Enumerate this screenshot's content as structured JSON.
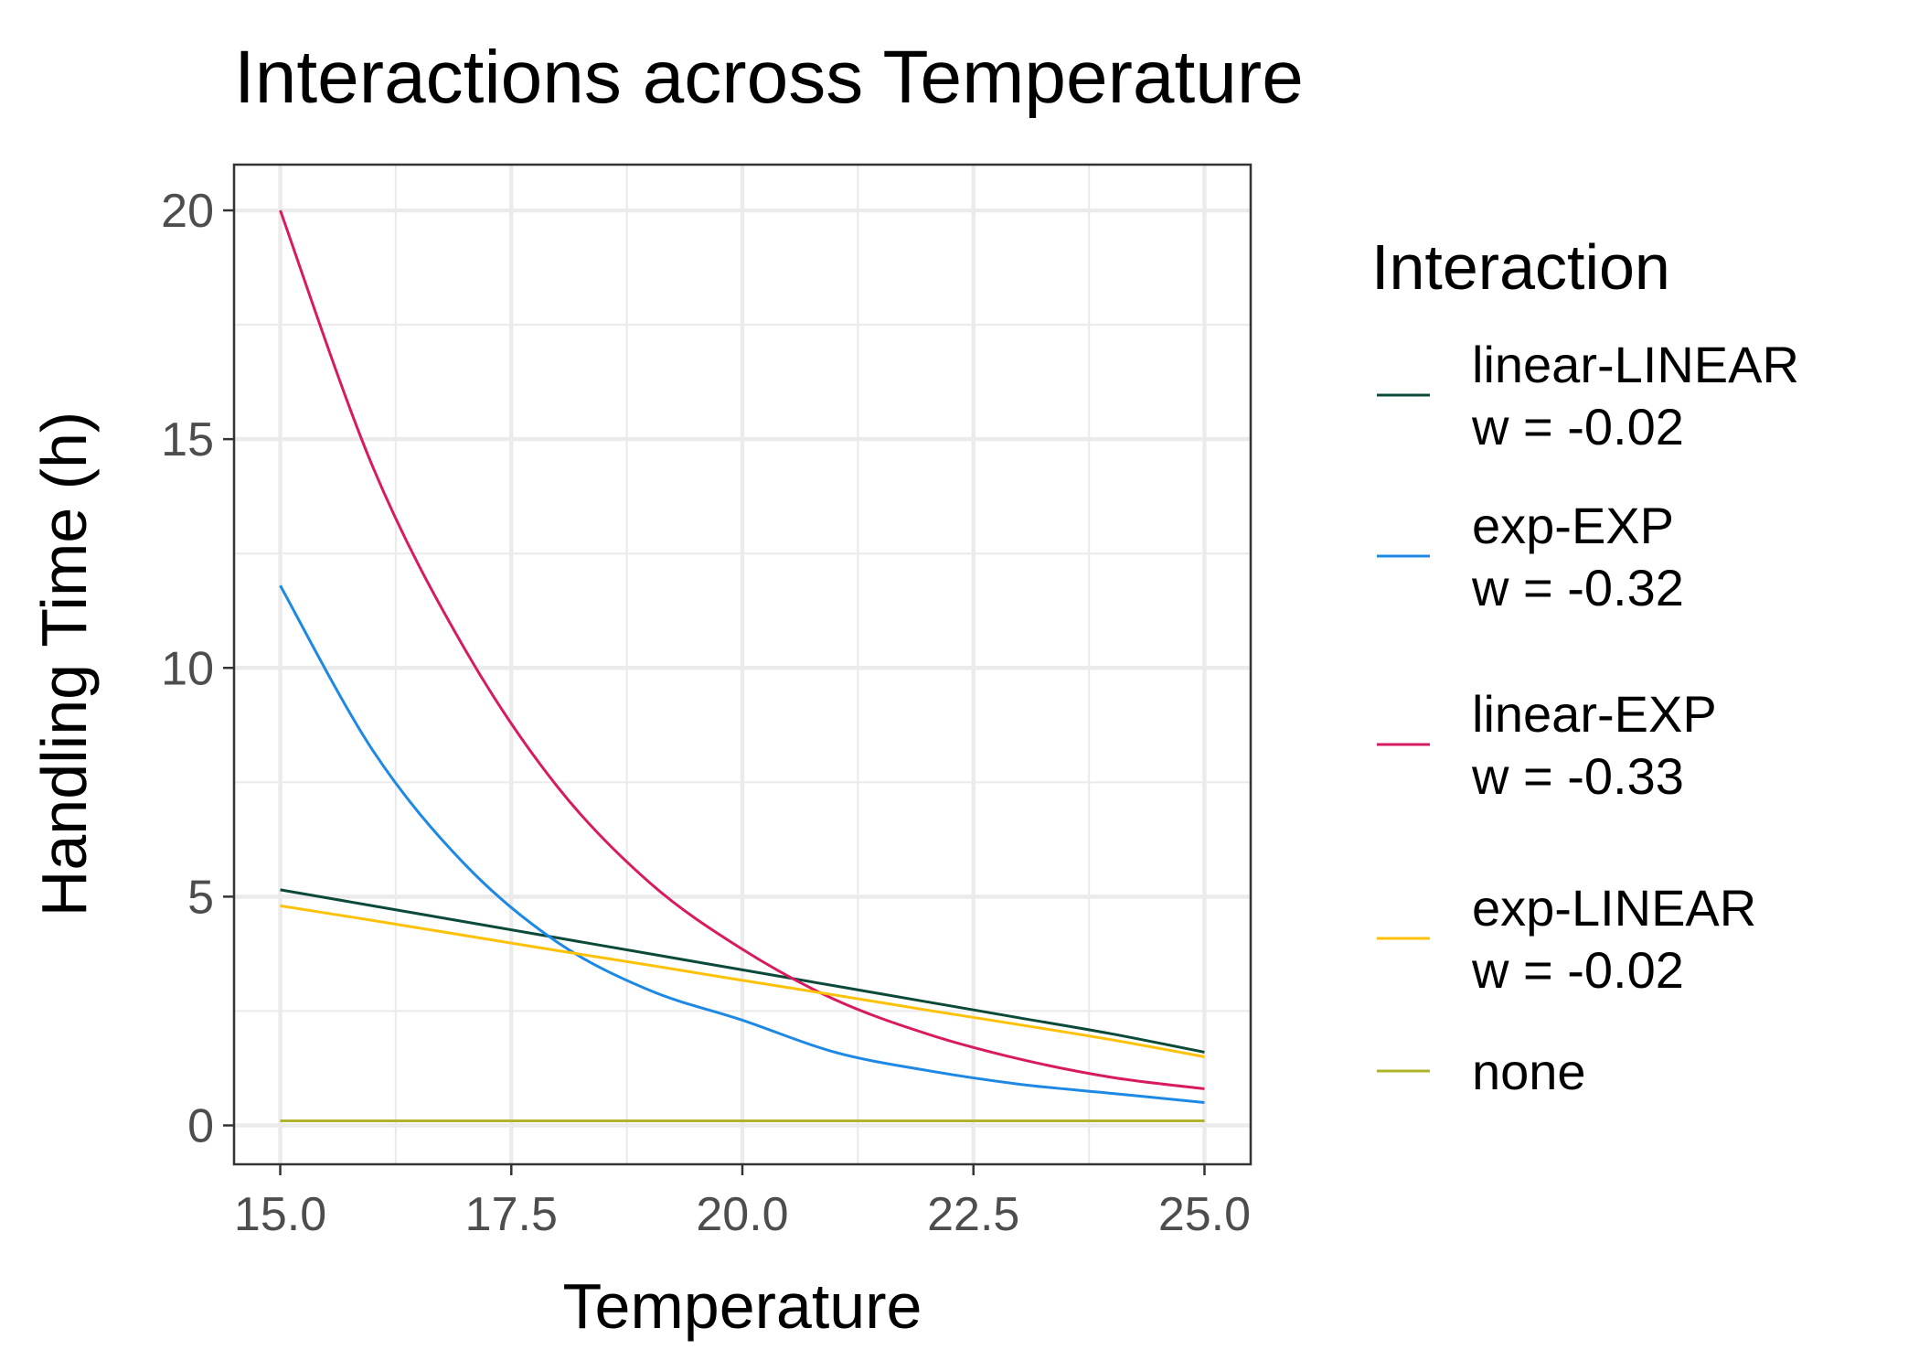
{
  "chart_data": {
    "type": "line",
    "title": "Interactions across Temperature",
    "xlabel": "Temperature",
    "ylabel": "Handling Time (h)",
    "xlim": [
      14.5,
      25.5
    ],
    "ylim": [
      -0.85,
      21.0
    ],
    "x_ticks": [
      15.0,
      17.5,
      20.0,
      22.5,
      25.0
    ],
    "x_tick_labels": [
      "15.0",
      "17.5",
      "20.0",
      "22.5",
      "25.0"
    ],
    "y_ticks": [
      0,
      5,
      10,
      15,
      20
    ],
    "y_tick_labels": [
      "0",
      "5",
      "10",
      "15",
      "20"
    ],
    "grid": true,
    "legend": {
      "title": "Interaction",
      "placement": "right"
    },
    "series": [
      {
        "name": "linear-LINEAR",
        "label_lines": [
          "linear-LINEAR",
          "w = -0.02"
        ],
        "color": "#0b4a3a",
        "x": [
          15,
          16,
          17,
          18,
          19,
          20,
          21,
          22,
          23,
          24,
          25
        ],
        "values": [
          5.15,
          4.8,
          4.45,
          4.1,
          3.75,
          3.4,
          3.05,
          2.7,
          2.35,
          2.0,
          1.6
        ]
      },
      {
        "name": "exp-EXP",
        "label_lines": [
          "exp-EXP",
          "w = -0.32"
        ],
        "color": "#1e88e5",
        "x": [
          15,
          16,
          17,
          18,
          19,
          20,
          21,
          22,
          23,
          24,
          25
        ],
        "values": [
          11.8,
          8.2,
          5.7,
          4.0,
          2.95,
          2.3,
          1.6,
          1.2,
          0.9,
          0.7,
          0.5
        ]
      },
      {
        "name": "linear-EXP",
        "label_lines": [
          "linear-EXP",
          "w = -0.33"
        ],
        "color": "#d81b60",
        "x": [
          15,
          16,
          17,
          18,
          19,
          20,
          21,
          22,
          23,
          24,
          25
        ],
        "values": [
          20.0,
          14.4,
          10.4,
          7.4,
          5.3,
          3.85,
          2.75,
          2.0,
          1.45,
          1.05,
          0.8
        ]
      },
      {
        "name": "exp-LINEAR",
        "label_lines": [
          "exp-LINEAR",
          "w = -0.02"
        ],
        "color": "#ffc107",
        "x": [
          15,
          16,
          17,
          18,
          19,
          20,
          21,
          22,
          23,
          24,
          25
        ],
        "values": [
          4.8,
          4.48,
          4.15,
          3.82,
          3.5,
          3.17,
          2.85,
          2.52,
          2.2,
          1.87,
          1.5
        ]
      },
      {
        "name": "none",
        "label_lines": [
          "none"
        ],
        "color": "#afb42b",
        "x": [
          15,
          25
        ],
        "values": [
          0.1,
          0.1
        ]
      }
    ]
  }
}
